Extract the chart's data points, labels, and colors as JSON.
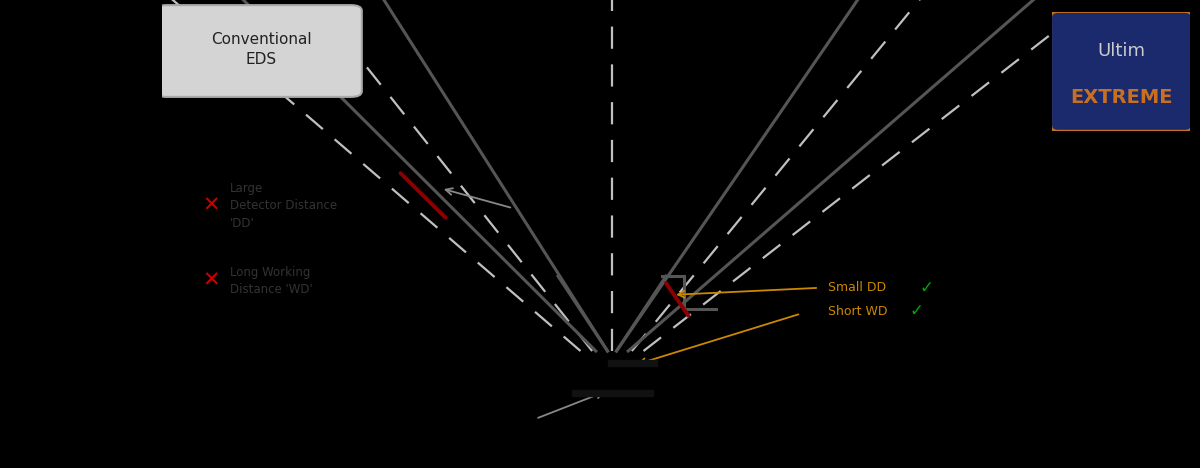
{
  "bg_color": "#000000",
  "diagram_bg": "#ffffff",
  "conventional_label": "Conventional\nEDS",
  "conventional_box_bg": "#d4d4d4",
  "conventional_box_edge": "#aaaaaa",
  "ultim_label_top": "Ultim",
  "ultim_label_bot": "EXTREME",
  "ultim_box_bg": "#1a2a6c",
  "ultim_border_color": "#c87020",
  "ultim_top_color": "#cccccc",
  "ultim_bot_color": "#c87020",
  "dark_line_color": "#555555",
  "dashed_color": "#c0c0c0",
  "red_line_color": "#8b0000",
  "arrow_gray": "#888888",
  "arrow_orange": "#cc8800",
  "cross_color": "#cc0000",
  "check_color": "#00aa00",
  "label_large_dd": "Large\nDetector Distance\n'DD'",
  "label_long_wd": "Long Working\nDistance 'WD'",
  "label_small_dd": "Small DD",
  "label_short_wd": "Short WD"
}
